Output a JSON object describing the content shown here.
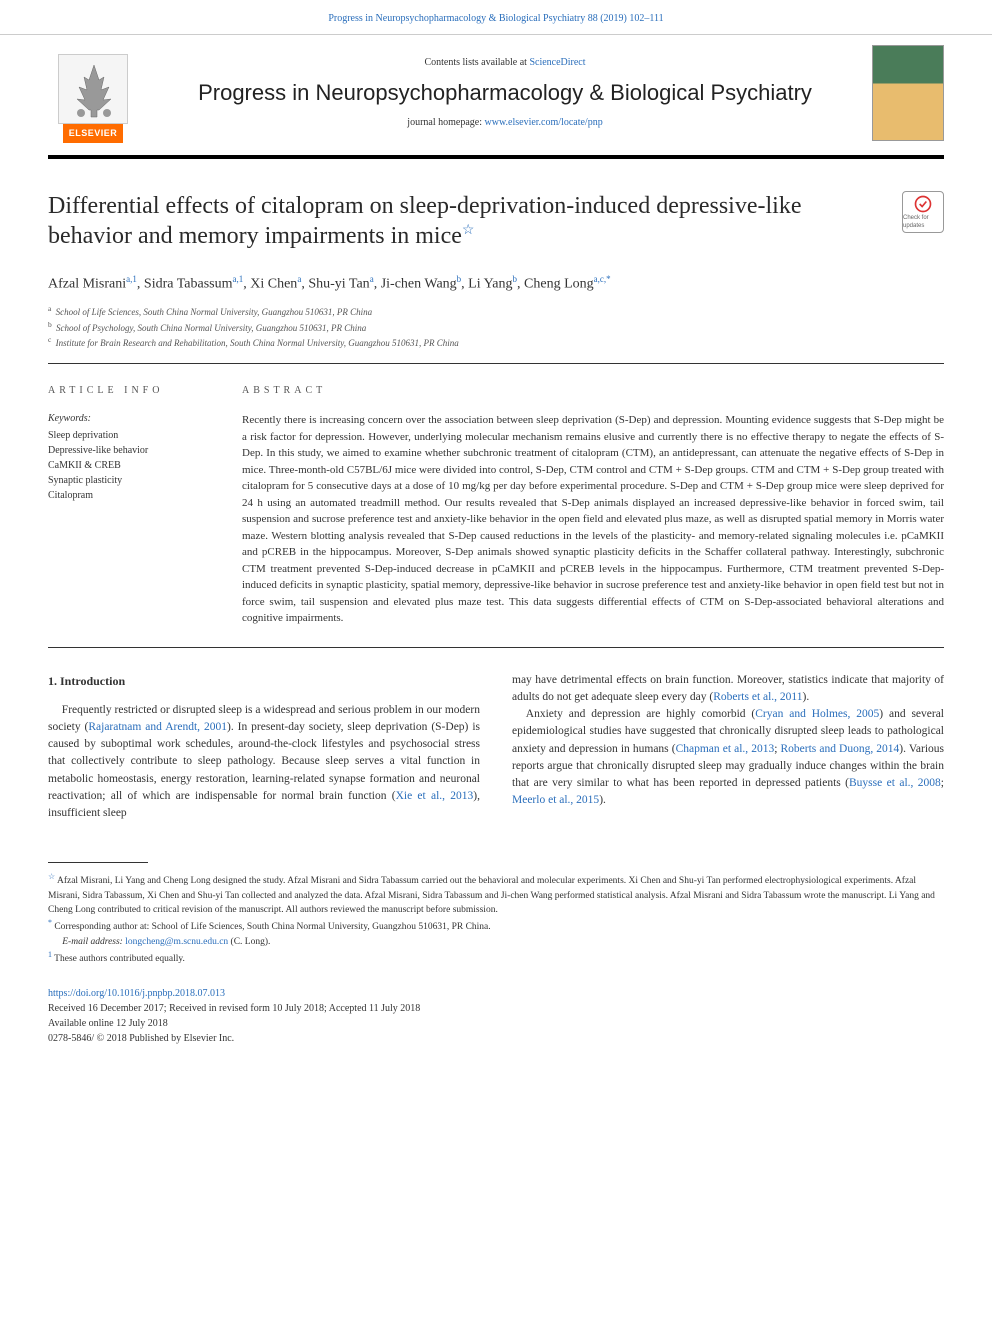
{
  "header_citation": "Progress in Neuropsychopharmacology & Biological Psychiatry 88 (2019) 102–111",
  "contents_prefix": "Contents lists available at ",
  "contents_link": "ScienceDirect",
  "journal_name": "Progress in Neuropsychopharmacology & Biological Psychiatry",
  "homepage_prefix": "journal homepage: ",
  "homepage_url": "www.elsevier.com/locate/pnp",
  "elsevier_label": "ELSEVIER",
  "check_badge_label": "Check for updates",
  "title": "Differential effects of citalopram on sleep-deprivation-induced depressive-like behavior and memory impairments in mice",
  "title_star": "☆",
  "authors_html": "Afzal Misrani<sup>a,1</sup>, Sidra Tabassum<sup>a,1</sup>, Xi Chen<sup>a</sup>, Shu-yi Tan<sup>a</sup>, Ji-chen Wang<sup>b</sup>, Li Yang<sup>b</sup>, Cheng Long<sup>a,c,*</sup>",
  "affiliations": [
    {
      "sup": "a",
      "text": "School of Life Sciences, South China Normal University, Guangzhou 510631, PR China"
    },
    {
      "sup": "b",
      "text": "School of Psychology, South China Normal University, Guangzhou 510631, PR China"
    },
    {
      "sup": "c",
      "text": "Institute for Brain Research and Rehabilitation, South China Normal University, Guangzhou 510631, PR China"
    }
  ],
  "article_info_label": "ARTICLE INFO",
  "keywords_label": "Keywords:",
  "keywords": [
    "Sleep deprivation",
    "Depressive-like behavior",
    "CaMKII & CREB",
    "Synaptic plasticity",
    "Citalopram"
  ],
  "abstract_label": "ABSTRACT",
  "abstract_text": "Recently there is increasing concern over the association between sleep deprivation (S-Dep) and depression. Mounting evidence suggests that S-Dep might be a risk factor for depression. However, underlying molecular mechanism remains elusive and currently there is no effective therapy to negate the effects of S-Dep. In this study, we aimed to examine whether subchronic treatment of citalopram (CTM), an antidepressant, can attenuate the negative effects of S-Dep in mice. Three-month-old C57BL/6J mice were divided into control, S-Dep, CTM control and CTM + S-Dep groups. CTM and CTM + S-Dep group treated with citalopram for 5 consecutive days at a dose of 10 mg/kg per day before experimental procedure. S-Dep and CTM + S-Dep group mice were sleep deprived for 24 h using an automated treadmill method. Our results revealed that S-Dep animals displayed an increased depressive-like behavior in forced swim, tail suspension and sucrose preference test and anxiety-like behavior in the open field and elevated plus maze, as well as disrupted spatial memory in Morris water maze. Western blotting analysis revealed that S-Dep caused reductions in the levels of the plasticity- and memory-related signaling molecules i.e. pCaMKII and pCREB in the hippocampus. Moreover, S-Dep animals showed synaptic plasticity deficits in the Schaffer collateral pathway. Interestingly, subchronic CTM treatment prevented S-Dep-induced decrease in pCaMKII and pCREB levels in the hippocampus. Furthermore, CTM treatment prevented S-Dep-induced deficits in synaptic plasticity, spatial memory, depressive-like behavior in sucrose preference test and anxiety-like behavior in open field test but not in force swim, tail suspension and elevated plus maze test. This data suggests differential effects of CTM on S-Dep-associated behavioral alterations and cognitive impairments.",
  "intro_heading": "1. Introduction",
  "intro_col1_segments": [
    {
      "t": "Frequently restricted or disrupted sleep is a widespread and serious problem in our modern society ("
    },
    {
      "t": "Rajaratnam and Arendt, 2001",
      "c": true
    },
    {
      "t": "). In present-day society, sleep deprivation (S-Dep) is caused by suboptimal work schedules, around-the-clock lifestyles and psychosocial stress that collectively contribute to sleep pathology. Because sleep serves a vital function in metabolic homeostasis, energy restoration, learning-related synapse formation and neuronal reactivation; all of which are indispensable for normal brain function ("
    },
    {
      "t": "Xie et al., 2013",
      "c": true
    },
    {
      "t": "), insufficient sleep"
    }
  ],
  "intro_col2_p1_segments": [
    {
      "t": "may have detrimental effects on brain function. Moreover, statistics indicate that majority of adults do not get adequate sleep every day ("
    },
    {
      "t": "Roberts et al., 2011",
      "c": true
    },
    {
      "t": ")."
    }
  ],
  "intro_col2_p2_segments": [
    {
      "t": "Anxiety and depression are highly comorbid ("
    },
    {
      "t": "Cryan and Holmes, 2005",
      "c": true
    },
    {
      "t": ") and several epidemiological studies have suggested that chronically disrupted sleep leads to pathological anxiety and depression in humans ("
    },
    {
      "t": "Chapman et al., 2013",
      "c": true
    },
    {
      "t": "; "
    },
    {
      "t": "Roberts and Duong, 2014",
      "c": true
    },
    {
      "t": "). Various reports argue that chronically disrupted sleep may gradually induce changes within the brain that are very similar to what has been reported in depressed patients ("
    },
    {
      "t": "Buysse et al., 2008",
      "c": true
    },
    {
      "t": "; "
    },
    {
      "t": "Meerlo et al., 2015",
      "c": true
    },
    {
      "t": ")."
    }
  ],
  "footnote_star": "☆",
  "footnote_star_text": "Afzal Misrani, Li Yang and Cheng Long designed the study. Afzal Misrani and Sidra Tabassum carried out the behavioral and molecular experiments. Xi Chen and Shu-yi Tan performed electrophysiological experiments. Afzal Misrani, Sidra Tabassum, Xi Chen and Shu-yi Tan collected and analyzed the data. Afzal Misrani, Sidra Tabassum and Ji-chen Wang performed statistical analysis. Afzal Misrani and Sidra Tabassum wrote the manuscript. Li Yang and Cheng Long contributed to critical revision of the manuscript. All authors reviewed the manuscript before submission.",
  "footnote_corr_sup": "*",
  "footnote_corr_text": "Corresponding author at: School of Life Sciences, South China Normal University, Guangzhou 510631, PR China.",
  "footnote_email_label": "E-mail address: ",
  "footnote_email": "longcheng@m.scnu.edu.cn",
  "footnote_email_suffix": " (C. Long).",
  "footnote_equal_sup": "1",
  "footnote_equal_text": "These authors contributed equally.",
  "doi": "https://doi.org/10.1016/j.pnpbp.2018.07.013",
  "received_line": "Received 16 December 2017; Received in revised form 10 July 2018; Accepted 11 July 2018",
  "available_line": "Available online 12 July 2018",
  "copyright_line": "0278-5846/ © 2018 Published by Elsevier Inc.",
  "colors": {
    "link": "#2a6ebb",
    "elsevier_orange": "#ff6c00",
    "text": "#333333",
    "rule": "#000000"
  }
}
